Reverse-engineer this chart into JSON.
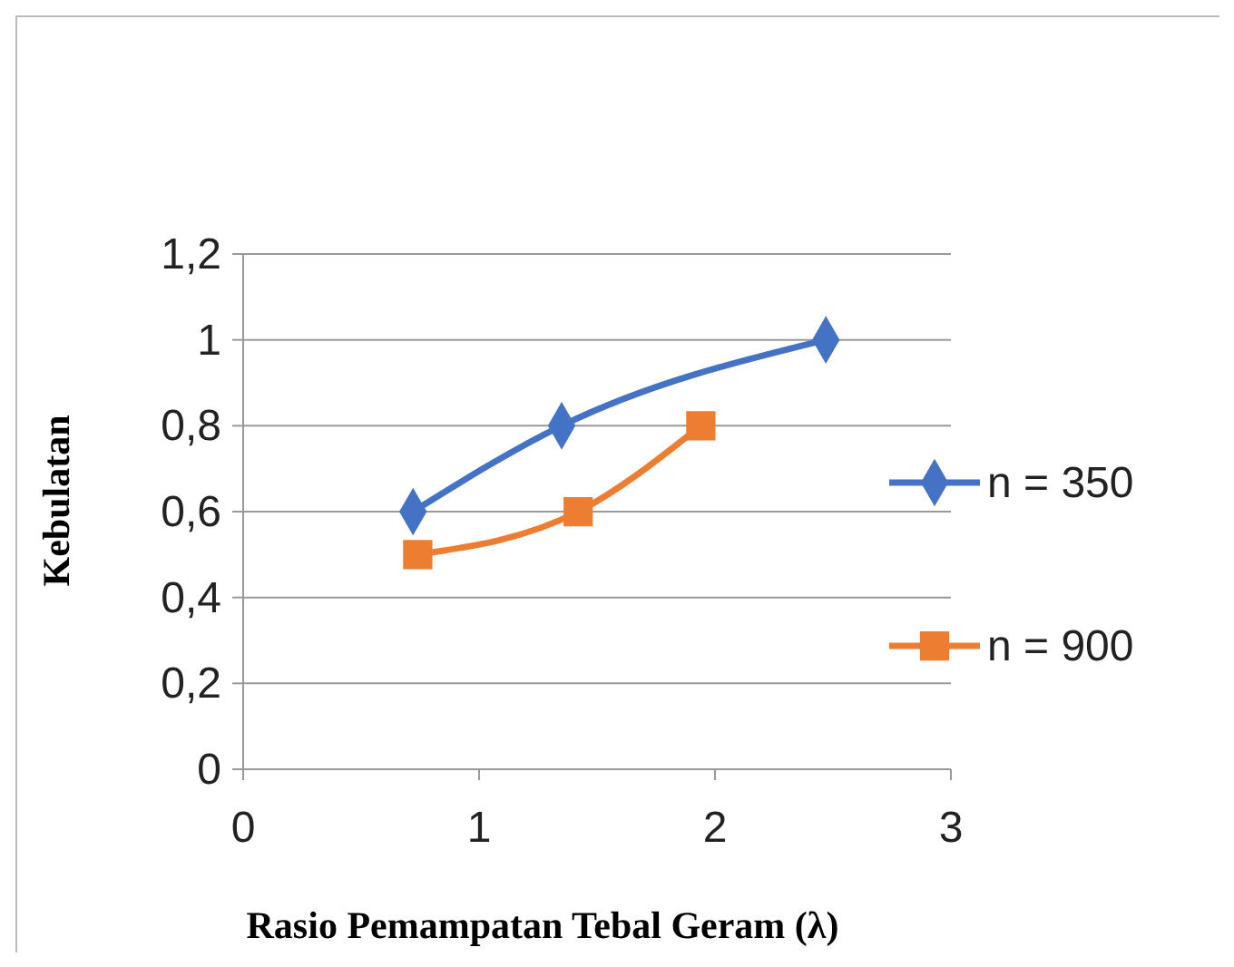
{
  "chart_data": {
    "type": "line",
    "xlabel": "Rasio Pemampatan Tebal Geram (λ)",
    "ylabel": "Kebulatan",
    "series": [
      {
        "name": "n = 350",
        "color": "#4472c4",
        "marker": "diamond",
        "x": [
          0.72,
          1.35,
          2.47
        ],
        "values": [
          0.6,
          0.8,
          1.0
        ]
      },
      {
        "name": "n = 900",
        "color": "#ed7d31",
        "marker": "square",
        "x": [
          0.74,
          1.42,
          1.94
        ],
        "values": [
          0.5,
          0.6,
          0.8
        ]
      }
    ],
    "xlim": [
      0,
      3
    ],
    "xticks": [
      0,
      1,
      2,
      3
    ],
    "ylim": [
      0,
      1.2
    ],
    "yticks": [
      0,
      {
        "value": 0.2,
        "label": "0,2"
      },
      {
        "value": 0.4,
        "label": "0,4"
      },
      {
        "value": 0.6,
        "label": "0,6"
      },
      {
        "value": 0.8,
        "label": "0,8"
      },
      1,
      {
        "value": 1.2,
        "label": "1,2"
      }
    ],
    "grid": "y",
    "legend": "right",
    "line_style": "solid"
  }
}
